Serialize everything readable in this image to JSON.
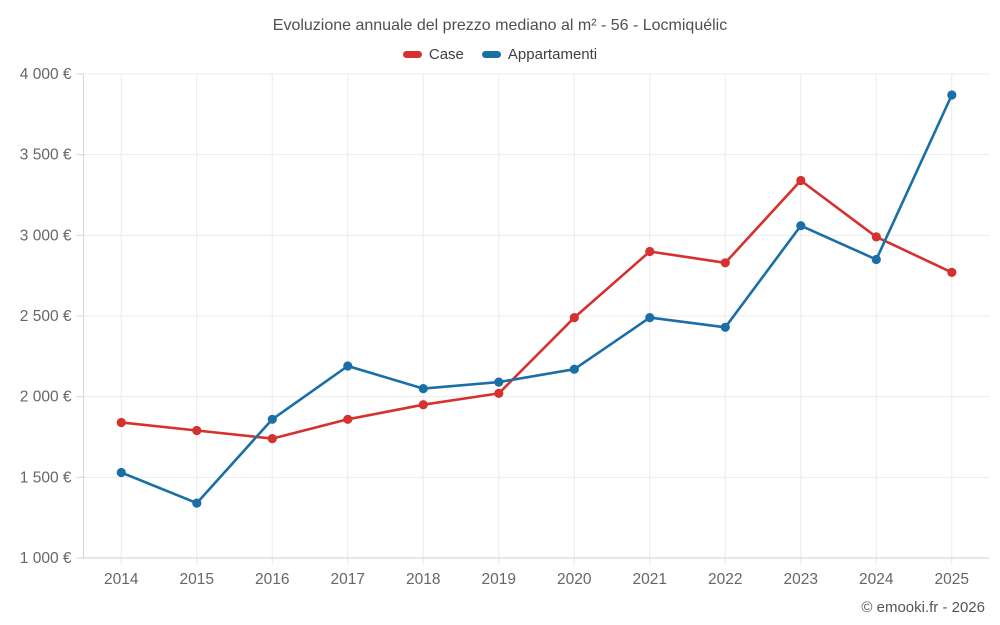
{
  "chart_data": {
    "type": "line",
    "title": "Evoluzione annuale del prezzo mediano al m² - 56 - Locmiquélic",
    "categories": [
      "2014",
      "2015",
      "2016",
      "2017",
      "2018",
      "2019",
      "2020",
      "2021",
      "2022",
      "2023",
      "2024",
      "2025"
    ],
    "series": [
      {
        "name": "Case",
        "color": "#d5312f",
        "values": [
          1840,
          1790,
          1740,
          1860,
          1950,
          2020,
          2490,
          2900,
          2830,
          3340,
          2990,
          2770
        ]
      },
      {
        "name": "Appartamenti",
        "color": "#1a6fa6",
        "values": [
          1530,
          1340,
          1860,
          2190,
          2050,
          2090,
          2170,
          2490,
          2430,
          3060,
          2850,
          3870
        ]
      }
    ],
    "ylim": [
      1000,
      4000
    ],
    "yticks": [
      1000,
      1500,
      2000,
      2500,
      3000,
      3500,
      4000
    ],
    "ytick_labels": [
      "1 000 €",
      "1 500 €",
      "2 000 €",
      "2 500 €",
      "3 000 €",
      "3 500 €",
      "4 000 €"
    ],
    "xlabel": "",
    "ylabel": "",
    "grid": true,
    "legend_position": "top",
    "colors": {
      "grid_line": "#ebebeb",
      "axis_line": "#cfcfcf",
      "tick_mark": "#d6d6d6",
      "axis_label": "#666666"
    }
  },
  "footer": {
    "credit": "© emooki.fr - 2026"
  }
}
